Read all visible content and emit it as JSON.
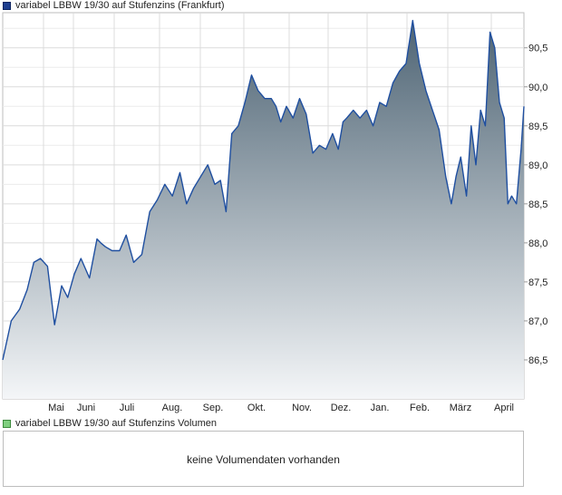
{
  "chart_data": {
    "type": "area",
    "title": "variabel LBBW 19/30 auf Stufenzins (Frankfurt)",
    "xlabel": "",
    "ylabel": "",
    "x_tick_labels": [
      "Mai",
      "Juni",
      "Juli",
      "Aug.",
      "Sep.",
      "Okt.",
      "Nov.",
      "Dez.",
      "Jan.",
      "Feb.",
      "März",
      "April"
    ],
    "y_tick_labels": [
      "86,5",
      "87,0",
      "87,5",
      "88,0",
      "88,5",
      "89,0",
      "89,5",
      "90,0",
      "90,5"
    ],
    "ylim": [
      86.0,
      90.95
    ],
    "grid": true,
    "legend_position": "top-left",
    "colors": {
      "line": "#1f4fa0",
      "fill_top": "#4e6474",
      "fill_bottom": "#f4f6f8",
      "grid": "#dcdcdc"
    },
    "series": [
      {
        "name": "variabel LBBW 19/30 auf Stufenzins",
        "x_month_index": [
          0.0,
          0.18,
          0.36,
          0.52,
          0.66,
          0.8,
          0.95,
          1.1,
          1.25,
          1.38,
          1.52,
          1.66,
          1.84,
          2.0,
          2.08,
          2.18,
          2.32,
          2.48,
          2.62,
          2.78,
          2.95,
          3.12,
          3.28,
          3.44,
          3.6,
          3.76,
          3.9,
          4.05,
          4.2,
          4.35,
          4.5,
          4.62,
          4.74,
          4.86,
          5.0,
          5.14,
          5.28,
          5.42,
          5.56,
          5.7,
          5.8,
          5.9,
          6.02,
          6.16,
          6.3,
          6.44,
          6.58,
          6.72,
          6.86,
          7.0,
          7.12,
          7.22,
          7.3,
          7.44,
          7.58,
          7.72,
          7.86,
          8.0,
          8.14,
          8.28,
          8.42,
          8.56,
          8.7,
          8.84,
          8.98,
          9.12,
          9.26,
          9.4,
          9.52,
          9.62,
          9.72,
          9.84,
          9.94,
          10.04,
          10.14,
          10.24,
          10.34,
          10.44,
          10.54,
          10.64,
          10.72,
          10.8,
          10.9,
          11.0,
          11.06
        ],
        "values": [
          86.5,
          87.0,
          87.15,
          87.4,
          87.75,
          87.8,
          87.7,
          86.95,
          87.45,
          87.3,
          87.6,
          87.8,
          87.55,
          88.05,
          88.0,
          87.95,
          87.9,
          87.9,
          88.1,
          87.75,
          87.85,
          88.4,
          88.55,
          88.75,
          88.6,
          88.9,
          88.5,
          88.7,
          88.85,
          89.0,
          88.75,
          88.8,
          88.4,
          89.4,
          89.5,
          89.8,
          90.15,
          89.95,
          89.85,
          89.85,
          89.75,
          89.55,
          89.75,
          89.6,
          89.85,
          89.65,
          89.15,
          89.25,
          89.2,
          89.4,
          89.2,
          89.55,
          89.6,
          89.7,
          89.6,
          89.7,
          89.5,
          89.8,
          89.75,
          90.05,
          90.2,
          90.3,
          90.85,
          90.3,
          89.95,
          89.7,
          89.45,
          88.85,
          88.5,
          88.85,
          89.1,
          88.6,
          89.5,
          89.0,
          89.7,
          89.5,
          90.7,
          90.5,
          89.8,
          89.6,
          88.5,
          88.6,
          88.5,
          89.2,
          89.75
        ],
        "values_note": ""
      }
    ]
  },
  "legend": {
    "price_label": "variabel LBBW 19/30 auf Stufenzins (Frankfurt)",
    "volume_label": "variabel LBBW 19/30 auf Stufenzins Volumen"
  },
  "volume": {
    "message": "keine Volumendaten vorhanden"
  }
}
